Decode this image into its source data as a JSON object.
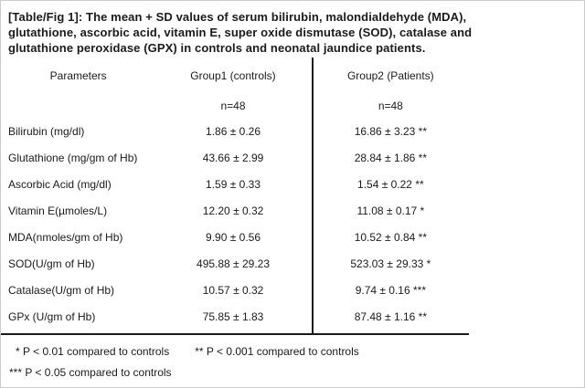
{
  "title_lines": [
    "[Table/Fig 1]: The mean + SD values of serum bilirubin, malondialdehyde  (MDA),",
    "glutathione, ascorbic acid, vitamin E, super oxide dismutase (SOD), catalase and",
    "glutathione peroxidase (GPX) in controls and neonatal jaundice patients."
  ],
  "table": {
    "headers": {
      "parameters": "Parameters",
      "group1": "Group1 (controls)",
      "group2": "Group2 (Patients)"
    },
    "subheaders": {
      "group1_n": "n=48",
      "group2_n": "n=48"
    },
    "rows": [
      {
        "parameter": "Bilirubin (mg/dl)",
        "group1": "1.86 ± 0.26",
        "group2": "16.86 ± 3.23 **"
      },
      {
        "parameter": "Glutathione (mg/gm of Hb)",
        "group1": "43.66 ± 2.99",
        "group2": "28.84 ± 1.86 **"
      },
      {
        "parameter": "Ascorbic Acid (mg/dl)",
        "group1": "1.59 ± 0.33",
        "group2": "1.54 ± 0.22 **"
      },
      {
        "parameter": "Vitamin E(µmoles/L)",
        "group1": "12.20 ± 0.32",
        "group2": "11.08 ± 0.17 *"
      },
      {
        "parameter": "MDA(nmoles/gm of Hb)",
        "group1": "9.90 ± 0.56",
        "group2": "10.52 ± 0.84 **"
      },
      {
        "parameter": "SOD(U/gm of Hb)",
        "group1": "495.88 ± 29.23",
        "group2": "523.03 ± 29.33 *"
      },
      {
        "parameter": "Catalase(U/gm of Hb)",
        "group1": "10.57 ± 0.32",
        "group2": "9.74 ± 0.16 ***"
      },
      {
        "parameter": "GPx (U/gm of Hb)",
        "group1": "75.85 ± 1.83",
        "group2": "87.48 ± 1.16 **"
      }
    ]
  },
  "footnotes": {
    "note1": "* P < 0.01 compared to controls",
    "note2": "** P < 0.001 compared to controls",
    "note3": "*** P < 0.05 compared to controls"
  },
  "colors": {
    "text": "#1b1b1b",
    "rule": "#1a1a1a",
    "page_border": "#cccccc",
    "background": "#ffffff"
  }
}
